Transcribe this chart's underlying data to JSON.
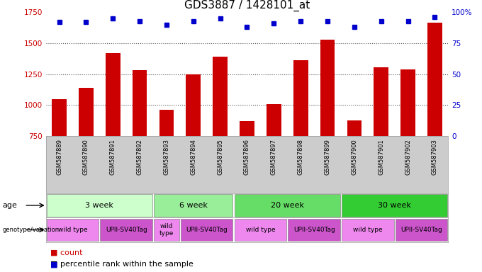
{
  "title": "GDS3887 / 1428101_at",
  "samples": [
    "GSM587889",
    "GSM587890",
    "GSM587891",
    "GSM587892",
    "GSM587893",
    "GSM587894",
    "GSM587895",
    "GSM587896",
    "GSM587897",
    "GSM587898",
    "GSM587899",
    "GSM587900",
    "GSM587901",
    "GSM587902",
    "GSM587903"
  ],
  "counts": [
    1050,
    1140,
    1420,
    1285,
    960,
    1250,
    1390,
    870,
    1010,
    1365,
    1530,
    875,
    1305,
    1290,
    1665
  ],
  "percentile_ranks": [
    92,
    92,
    95,
    93,
    90,
    93,
    95,
    88,
    91,
    93,
    93,
    88,
    93,
    93,
    96
  ],
  "ylim_left": [
    750,
    1750
  ],
  "ylim_right": [
    0,
    100
  ],
  "yticks_left": [
    750,
    1000,
    1250,
    1500,
    1750
  ],
  "yticks_right": [
    0,
    25,
    50,
    75,
    100
  ],
  "bar_color": "#cc0000",
  "dot_color": "#0000cc",
  "age_groups": [
    {
      "label": "3 week",
      "start": 0,
      "end": 4,
      "color": "#ccffcc"
    },
    {
      "label": "6 week",
      "start": 4,
      "end": 7,
      "color": "#99ee99"
    },
    {
      "label": "20 week",
      "start": 7,
      "end": 11,
      "color": "#66dd66"
    },
    {
      "label": "30 week",
      "start": 11,
      "end": 15,
      "color": "#33cc33"
    }
  ],
  "genotype_groups": [
    {
      "label": "wild type",
      "start": 0,
      "end": 2,
      "color": "#ee88ee"
    },
    {
      "label": "UPII-SV40Tag",
      "start": 2,
      "end": 4,
      "color": "#cc55cc"
    },
    {
      "label": "wild\ntype",
      "start": 4,
      "end": 5,
      "color": "#ee88ee"
    },
    {
      "label": "UPII-SV40Tag",
      "start": 5,
      "end": 7,
      "color": "#cc55cc"
    },
    {
      "label": "wild type",
      "start": 7,
      "end": 9,
      "color": "#ee88ee"
    },
    {
      "label": "UPII-SV40Tag",
      "start": 9,
      "end": 11,
      "color": "#cc55cc"
    },
    {
      "label": "wild type",
      "start": 11,
      "end": 13,
      "color": "#ee88ee"
    },
    {
      "label": "UPII-SV40Tag",
      "start": 13,
      "end": 15,
      "color": "#cc55cc"
    }
  ],
  "age_row_label": "age",
  "geno_row_label": "genotype/variation",
  "legend_count_color": "#cc0000",
  "legend_pct_color": "#0000cc",
  "grid_dotted_color": "#555555",
  "bg_color": "#ffffff",
  "xlabels_bg": "#cccccc",
  "title_fontsize": 11,
  "tick_fontsize": 7.5,
  "label_fontsize": 8
}
